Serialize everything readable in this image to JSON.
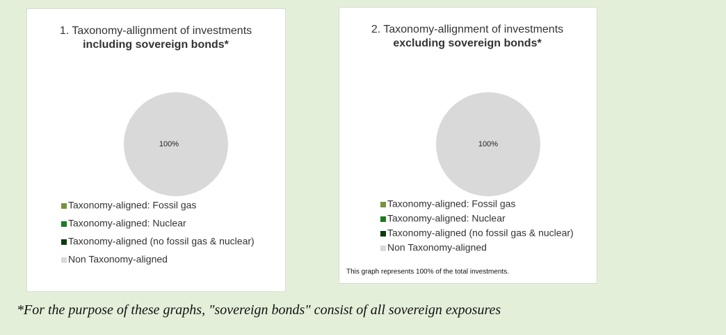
{
  "chart_data": [
    {
      "type": "pie",
      "title": "1. Taxonomy-allignment of investments",
      "subtitle": "including sovereign bonds*",
      "categories": [
        "Taxonomy-aligned: Fossil gas",
        "Taxonomy-aligned: Nuclear",
        "Taxonomy-aligned (no fossil gas & nuclear)",
        "Non Taxonomy-aligned"
      ],
      "values": [
        0,
        0,
        0,
        100
      ],
      "value_labels": [
        null,
        null,
        null,
        "100%"
      ],
      "colors": [
        "#77933c",
        "#1e7b1e",
        "#0d3b0d",
        "#d9d9d9"
      ]
    },
    {
      "type": "pie",
      "title": "2. Taxonomy-allignment of investments",
      "subtitle": "excluding sovereign bonds*",
      "categories": [
        "Taxonomy-aligned: Fossil gas",
        "Taxonomy-aligned: Nuclear",
        "Taxonomy-aligned (no fossil gas & nuclear)",
        "Non Taxonomy-aligned"
      ],
      "values": [
        0,
        0,
        0,
        100
      ],
      "value_labels": [
        null,
        null,
        null,
        "100%"
      ],
      "colors": [
        "#77933c",
        "#1e7b1e",
        "#0d3b0d",
        "#d9d9d9"
      ],
      "note": "This graph represents 100% of the total investments."
    }
  ],
  "footnote": "*For the purpose of these graphs, \"sovereign bonds\" consist of all sovereign exposures"
}
